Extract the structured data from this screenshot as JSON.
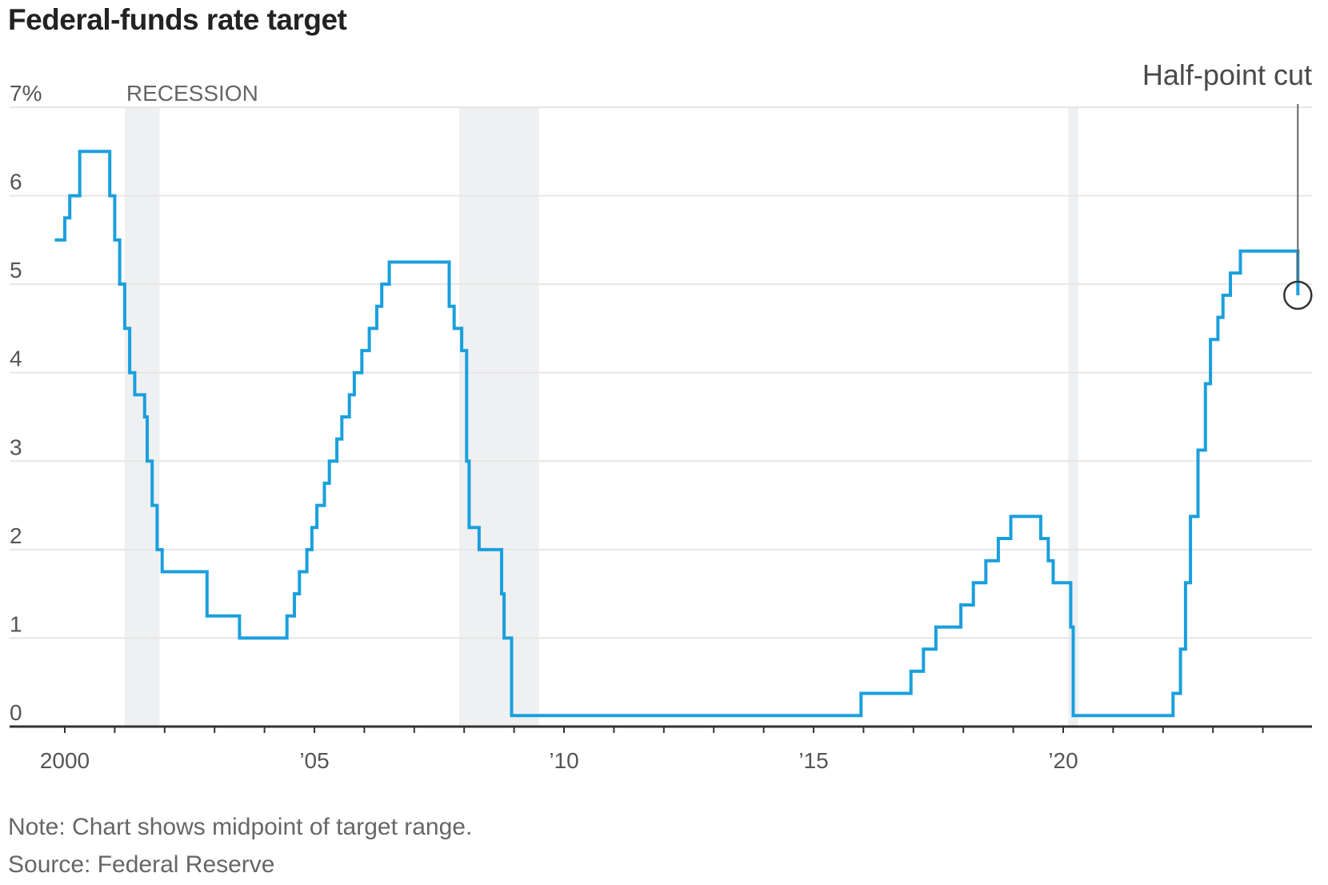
{
  "chart_data": {
    "type": "line",
    "title": "Federal-funds rate target",
    "note": "Note: Chart shows midpoint of target range.",
    "source": "Source: Federal Reserve",
    "xlabel": "",
    "ylabel": "",
    "ylim": [
      0,
      7
    ],
    "xlim": [
      1999.8,
      2024.9
    ],
    "y_ticks": [
      {
        "value": 0,
        "label": "0"
      },
      {
        "value": 1,
        "label": "1"
      },
      {
        "value": 2,
        "label": "2"
      },
      {
        "value": 3,
        "label": "3"
      },
      {
        "value": 4,
        "label": "4"
      },
      {
        "value": 5,
        "label": "5"
      },
      {
        "value": 6,
        "label": "6"
      },
      {
        "value": 7,
        "label": "7%"
      }
    ],
    "x_ticks": [
      {
        "value": 2000,
        "label": "2000"
      },
      {
        "value": 2005,
        "label": "’05"
      },
      {
        "value": 2010,
        "label": "’10"
      },
      {
        "value": 2015,
        "label": "’15"
      },
      {
        "value": 2020,
        "label": "’20"
      }
    ],
    "grid": true,
    "recessions": [
      {
        "start": 2001.2,
        "end": 2001.9
      },
      {
        "start": 2007.9,
        "end": 2009.5
      },
      {
        "start": 2020.1,
        "end": 2020.3
      }
    ],
    "recession_label": "RECESSION",
    "annotation": {
      "text": "Half-point cut",
      "x": 2024.7,
      "y": 4.875
    },
    "colors": {
      "line": "#1a9fdd",
      "recession": "#eef0f2",
      "grid": "#e6e6e6",
      "axis": "#333333",
      "annotation": "#444444"
    },
    "series": [
      {
        "values": [
          [
            1999.8,
            5.5
          ],
          [
            2000.0,
            5.75
          ],
          [
            2000.1,
            6.0
          ],
          [
            2000.3,
            6.5
          ],
          [
            2000.9,
            6.0
          ],
          [
            2001.0,
            5.5
          ],
          [
            2001.1,
            5.0
          ],
          [
            2001.2,
            4.5
          ],
          [
            2001.3,
            4.0
          ],
          [
            2001.4,
            3.75
          ],
          [
            2001.6,
            3.5
          ],
          [
            2001.65,
            3.0
          ],
          [
            2001.75,
            2.5
          ],
          [
            2001.85,
            2.0
          ],
          [
            2001.95,
            1.75
          ],
          [
            2002.85,
            1.25
          ],
          [
            2003.5,
            1.0
          ],
          [
            2004.45,
            1.25
          ],
          [
            2004.6,
            1.5
          ],
          [
            2004.7,
            1.75
          ],
          [
            2004.85,
            2.0
          ],
          [
            2004.95,
            2.25
          ],
          [
            2005.05,
            2.5
          ],
          [
            2005.2,
            2.75
          ],
          [
            2005.3,
            3.0
          ],
          [
            2005.45,
            3.25
          ],
          [
            2005.55,
            3.5
          ],
          [
            2005.7,
            3.75
          ],
          [
            2005.8,
            4.0
          ],
          [
            2005.95,
            4.25
          ],
          [
            2006.1,
            4.5
          ],
          [
            2006.25,
            4.75
          ],
          [
            2006.35,
            5.0
          ],
          [
            2006.5,
            5.25
          ],
          [
            2007.7,
            4.75
          ],
          [
            2007.8,
            4.5
          ],
          [
            2007.95,
            4.25
          ],
          [
            2008.05,
            3.0
          ],
          [
            2008.1,
            2.25
          ],
          [
            2008.3,
            2.0
          ],
          [
            2008.75,
            1.5
          ],
          [
            2008.8,
            1.0
          ],
          [
            2008.95,
            0.125
          ],
          [
            2015.95,
            0.375
          ],
          [
            2016.95,
            0.625
          ],
          [
            2017.2,
            0.875
          ],
          [
            2017.45,
            1.125
          ],
          [
            2017.95,
            1.375
          ],
          [
            2018.2,
            1.625
          ],
          [
            2018.45,
            1.875
          ],
          [
            2018.7,
            2.125
          ],
          [
            2018.95,
            2.375
          ],
          [
            2019.55,
            2.125
          ],
          [
            2019.7,
            1.875
          ],
          [
            2019.8,
            1.625
          ],
          [
            2020.15,
            1.125
          ],
          [
            2020.2,
            0.125
          ],
          [
            2022.2,
            0.375
          ],
          [
            2022.35,
            0.875
          ],
          [
            2022.45,
            1.625
          ],
          [
            2022.55,
            2.375
          ],
          [
            2022.7,
            3.125
          ],
          [
            2022.85,
            3.875
          ],
          [
            2022.95,
            4.375
          ],
          [
            2023.1,
            4.625
          ],
          [
            2023.2,
            4.875
          ],
          [
            2023.35,
            5.125
          ],
          [
            2023.55,
            5.375
          ],
          [
            2024.7,
            4.875
          ]
        ]
      }
    ]
  }
}
